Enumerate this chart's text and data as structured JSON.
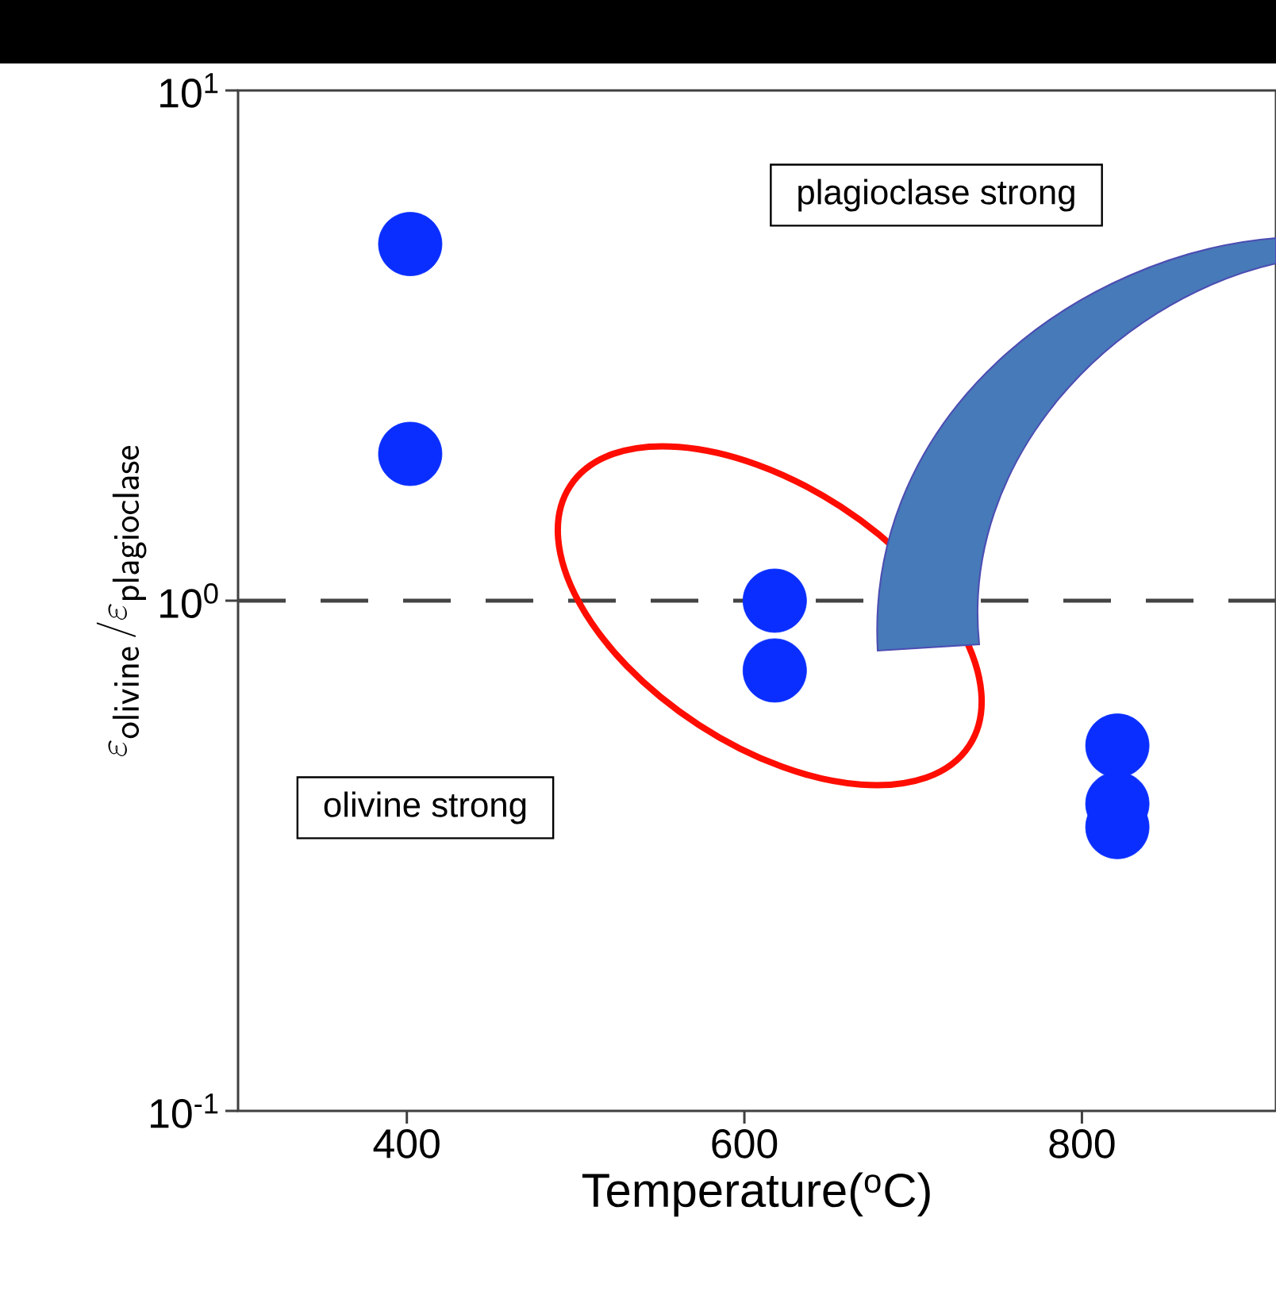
{
  "chart_data": {
    "type": "scatter",
    "xlabel": "Temperature($^{o}$C)",
    "ylabel": "\\varepsilon_{\\mathsf{olivine}}\\,/\\varepsilon_{\\mathsf{plagioclase}}",
    "x": [
      402,
      402,
      618,
      618,
      821,
      821,
      821
    ],
    "values": [
      5,
      1.94,
      1.0,
      0.73,
      0.52,
      0.4,
      0.36
    ],
    "color": "#0a2eff",
    "marker": "circle",
    "log": "y",
    "xlim": [
      300,
      915
    ],
    "xticks": [
      400,
      600,
      800
    ],
    "ylim": [
      0.1,
      10
    ],
    "yticks": [
      {
        "value": 0.1,
        "label": "10$^{-1}$"
      },
      {
        "value": 1,
        "label": "10$^{0}$"
      },
      {
        "value": 10,
        "label": "10$^{1}$"
      }
    ],
    "ref_lines": [
      {
        "axis": "y",
        "value": 1,
        "line_style": "dashed",
        "color": "#444444"
      }
    ],
    "annotations": [
      "plagioclase strong",
      "olivine strong"
    ]
  }
}
